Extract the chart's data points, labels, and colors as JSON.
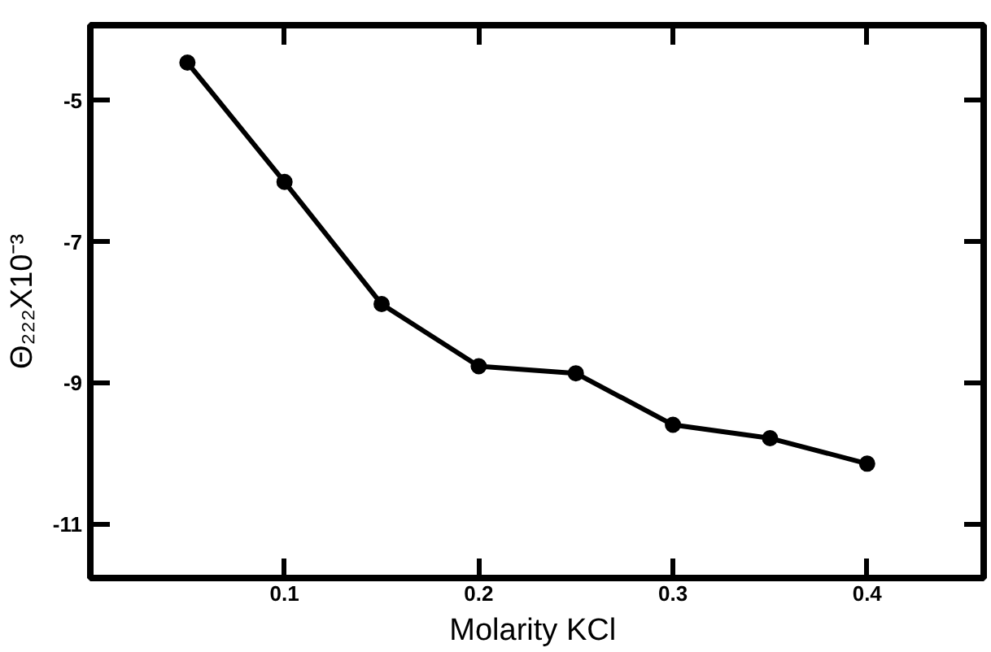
{
  "chart_data": {
    "type": "line",
    "xlabel": "Molarity  KCl",
    "ylabel": "Θ₂₂₂X10⁻³",
    "x": [
      0.05,
      0.1,
      0.15,
      0.2,
      0.25,
      0.3,
      0.35,
      0.4
    ],
    "series": [
      {
        "color": "#000000",
        "values": [
          -4.46,
          -6.15,
          -7.88,
          -8.76,
          -8.86,
          -9.59,
          -9.78,
          -10.14
        ]
      }
    ],
    "xlim": [
      0,
      0.46
    ],
    "ylim": [
      -11.76,
      -3.93
    ],
    "xticks": [
      0.1,
      0.2,
      0.3,
      0.4
    ],
    "yticks": [
      -5,
      -7,
      -9,
      -11
    ],
    "marker": "circle",
    "line_style": "solid",
    "grid": false
  }
}
